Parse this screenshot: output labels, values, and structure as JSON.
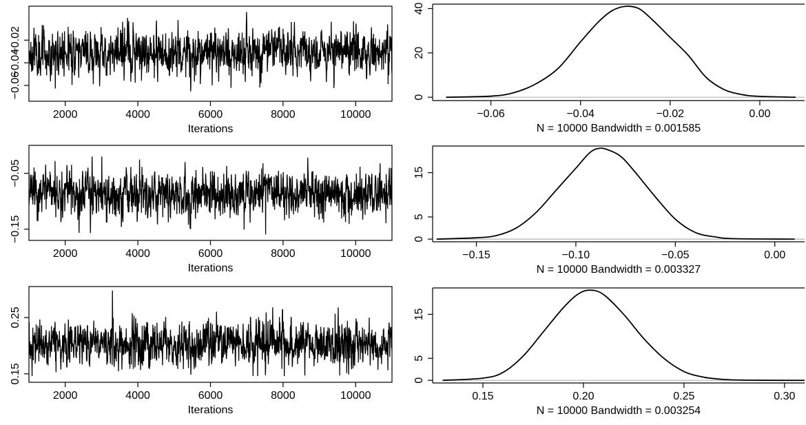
{
  "chart_data": [
    {
      "type": "line",
      "panel": "trace",
      "xlabel": "Iterations",
      "ylabel": "",
      "xlim": [
        1000,
        11000
      ],
      "ylim": [
        -0.074,
        0.01
      ],
      "x_ticks": [
        2000,
        4000,
        6000,
        8000,
        10000
      ],
      "x_tick_labels": [
        "2000",
        "4000",
        "6000",
        "8000",
        "10000"
      ],
      "y_ticks": [
        -0.06,
        -0.04,
        -0.02
      ],
      "y_tick_labels": [
        "−0.06",
        "−0.04",
        "−0.02"
      ],
      "trace": {
        "start": 1000,
        "end": 11000,
        "center": -0.031,
        "sd": 0.0095,
        "min": -0.072,
        "max": 0.006,
        "seed": 11
      },
      "series_color": "#000000"
    },
    {
      "type": "line",
      "panel": "density",
      "xlabel": "N = 10000   Bandwidth = 0.001585",
      "ylabel": "",
      "xlim": [
        -0.073,
        0.01
      ],
      "ylim": [
        -1.5,
        42
      ],
      "x_ticks": [
        -0.06,
        -0.04,
        -0.02,
        0.0
      ],
      "x_tick_labels": [
        "−0.06",
        "−0.04",
        "−0.02",
        "0.00"
      ],
      "y_ticks": [
        0,
        20,
        40
      ],
      "y_tick_labels": [
        "0",
        "20",
        "40"
      ],
      "x": [
        -0.07,
        -0.06,
        -0.055,
        -0.05,
        -0.045,
        -0.04,
        -0.036,
        -0.033,
        -0.03,
        -0.027,
        -0.024,
        -0.02,
        -0.016,
        -0.012,
        -0.008,
        -0.004,
        0.0,
        0.008
      ],
      "y": [
        0,
        0.5,
        2,
        6,
        13,
        25,
        34,
        39,
        41,
        40,
        35,
        27,
        19,
        9,
        3.5,
        1.2,
        0.4,
        0
      ],
      "baseline_color": "#b0b0b0",
      "series_color": "#000000"
    },
    {
      "type": "line",
      "panel": "trace",
      "xlabel": "Iterations",
      "ylabel": "",
      "xlim": [
        1000,
        11000
      ],
      "ylim": [
        -0.17,
        0.0
      ],
      "x_ticks": [
        2000,
        4000,
        6000,
        8000,
        10000
      ],
      "x_tick_labels": [
        "2000",
        "4000",
        "6000",
        "8000",
        "10000"
      ],
      "y_ticks": [
        -0.15,
        -0.05
      ],
      "y_tick_labels": [
        "−0.15",
        "−0.05"
      ],
      "trace": {
        "start": 1000,
        "end": 11000,
        "center": -0.086,
        "sd": 0.0195,
        "min": -0.16,
        "max": -0.02,
        "seed": 23
      },
      "series_color": "#000000"
    },
    {
      "type": "line",
      "panel": "density",
      "xlabel": "N = 10000   Bandwidth = 0.003327",
      "ylabel": "",
      "xlim": [
        -0.172,
        0.015
      ],
      "ylim": [
        -0.6,
        21
      ],
      "x_ticks": [
        -0.15,
        -0.1,
        -0.05,
        0.0
      ],
      "x_tick_labels": [
        "−0.15",
        "−0.10",
        "−0.05",
        "0.00"
      ],
      "y_ticks": [
        0,
        5,
        15
      ],
      "y_tick_labels": [
        "0",
        "5",
        "15"
      ],
      "x": [
        -0.17,
        -0.15,
        -0.14,
        -0.13,
        -0.12,
        -0.11,
        -0.1,
        -0.093,
        -0.088,
        -0.083,
        -0.077,
        -0.07,
        -0.06,
        -0.05,
        -0.04,
        -0.03,
        -0.02,
        0.01
      ],
      "y": [
        0,
        0.3,
        0.8,
        2.5,
        6,
        11,
        16,
        19.5,
        20.5,
        20,
        18.5,
        15,
        9.5,
        4.5,
        1.5,
        0.5,
        0.1,
        0
      ],
      "baseline_color": "#b0b0b0",
      "series_color": "#000000"
    },
    {
      "type": "line",
      "panel": "trace",
      "xlabel": "Iterations",
      "ylabel": "",
      "xlim": [
        1000,
        11000
      ],
      "ylim": [
        0.135,
        0.305
      ],
      "x_ticks": [
        2000,
        4000,
        6000,
        8000,
        10000
      ],
      "x_tick_labels": [
        "2000",
        "4000",
        "6000",
        "8000",
        "10000"
      ],
      "y_ticks": [
        0.15,
        0.25
      ],
      "y_tick_labels": [
        "0.15",
        "0.25"
      ],
      "trace": {
        "start": 1000,
        "end": 11000,
        "center": 0.203,
        "sd": 0.0188,
        "min": 0.146,
        "max": 0.268,
        "seed": 37,
        "spike_x": 3300,
        "spike_y": 0.298
      },
      "series_color": "#000000"
    },
    {
      "type": "line",
      "panel": "density",
      "xlabel": "N = 10000   Bandwidth = 0.003254",
      "ylabel": "",
      "xlim": [
        0.125,
        0.31
      ],
      "ylim": [
        -0.6,
        21
      ],
      "x_ticks": [
        0.15,
        0.2,
        0.25,
        0.3
      ],
      "x_tick_labels": [
        "0.15",
        "0.20",
        "0.25",
        "0.30"
      ],
      "y_ticks": [
        0,
        5,
        15
      ],
      "y_tick_labels": [
        "0",
        "5",
        "15"
      ],
      "x": [
        0.13,
        0.15,
        0.16,
        0.17,
        0.18,
        0.19,
        0.197,
        0.203,
        0.21,
        0.22,
        0.23,
        0.24,
        0.25,
        0.26,
        0.27,
        0.28,
        0.3,
        0.31
      ],
      "y": [
        0,
        0.5,
        1.8,
        5.5,
        11,
        16.5,
        19.5,
        20.5,
        19.5,
        15,
        9.5,
        5,
        2,
        0.7,
        0.2,
        0.05,
        0,
        0
      ],
      "baseline_color": "#b0b0b0",
      "series_color": "#000000"
    }
  ]
}
